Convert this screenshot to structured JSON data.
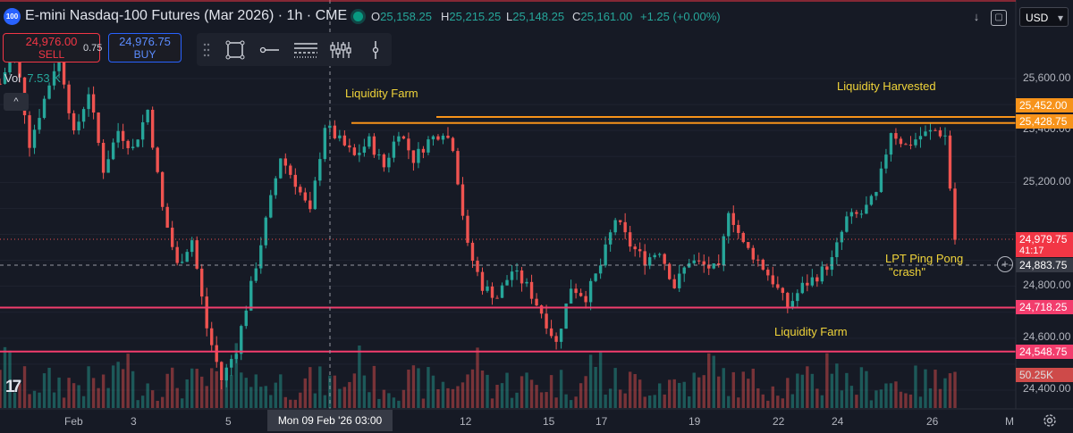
{
  "header": {
    "badge": "100",
    "title": "E-mini Nasdaq-100 Futures (Mar 2026) · 1h · CME",
    "ohlc": [
      {
        "k": "O",
        "v": "25,158.25"
      },
      {
        "k": "H",
        "v": "25,215.25"
      },
      {
        "k": "L",
        "v": "25,148.25"
      },
      {
        "k": "C",
        "v": "25,161.00"
      }
    ],
    "change": "+1.25 (+0.00%)",
    "currency": "USD"
  },
  "trade": {
    "sell_price": "24,976.00",
    "sell_label": "SELL",
    "spread": "0.75",
    "buy_price": "24,976.75",
    "buy_label": "BUY"
  },
  "volume": {
    "label": "Vol",
    "value": "7.53 K"
  },
  "annotations": {
    "liquidity_farm_top": "Liquidity Farm",
    "liquidity_harvested": "Liquidity Harvested",
    "lpt_line1": "LPT Ping Pong",
    "lpt_line2": "\"crash\"",
    "liquidity_farm_bottom": "Liquidity Farm"
  },
  "price_axis": {
    "labels": [
      "25,600.00",
      "25,400.00",
      "25,200.00",
      "24,800.00",
      "24,600.00",
      "24,400.00"
    ],
    "tags": {
      "orange_1": "25,452.00",
      "orange_2": "25,428.75",
      "current": "24,979.75",
      "countdown": "41:17",
      "crosshair": "24,883.75",
      "red_1": "24,718.25",
      "red_2": "24,548.75",
      "vol": "50.25K"
    }
  },
  "time_axis": {
    "labels": [
      "Feb",
      "3",
      "5",
      "12",
      "15",
      "17",
      "19",
      "22",
      "24",
      "26",
      "M"
    ],
    "crosshair": "Mon 09 Feb '26   03:00"
  },
  "colors": {
    "up": "#26a69a",
    "down": "#ef5350",
    "orange": "#f7931a",
    "pink": "#f23d6d",
    "annotation": "#f0d43a",
    "background": "#161a25"
  },
  "chart_data": {
    "type": "candlestick",
    "ylim": [
      24380,
      25700
    ],
    "levels": [
      25452.0,
      25428.75,
      24718.25,
      24548.75
    ],
    "current": 24979.75,
    "crosshair_price": 24883.75,
    "path_points": [
      [
        0,
        25580
      ],
      [
        3,
        25720
      ],
      [
        6,
        25350
      ],
      [
        9,
        25520
      ],
      [
        12,
        25700
      ],
      [
        15,
        25380
      ],
      [
        18,
        25550
      ],
      [
        21,
        25250
      ],
      [
        24,
        25400
      ],
      [
        27,
        25330
      ],
      [
        30,
        25480
      ],
      [
        33,
        25100
      ],
      [
        36,
        24880
      ],
      [
        39,
        24980
      ],
      [
        42,
        24640
      ],
      [
        45,
        24440
      ],
      [
        48,
        24560
      ],
      [
        51,
        24800
      ],
      [
        54,
        25050
      ],
      [
        57,
        25300
      ],
      [
        60,
        25200
      ],
      [
        63,
        25080
      ],
      [
        66,
        25420
      ],
      [
        69,
        25360
      ],
      [
        72,
        25300
      ],
      [
        75,
        25360
      ],
      [
        78,
        25260
      ],
      [
        81,
        25400
      ],
      [
        84,
        25290
      ],
      [
        87,
        25360
      ],
      [
        90,
        25400
      ],
      [
        92,
        25340
      ],
      [
        95,
        24950
      ],
      [
        98,
        24800
      ],
      [
        101,
        24760
      ],
      [
        104,
        24860
      ],
      [
        107,
        24800
      ],
      [
        110,
        24700
      ],
      [
        113,
        24580
      ],
      [
        116,
        24800
      ],
      [
        119,
        24760
      ],
      [
        122,
        24880
      ],
      [
        125,
        25060
      ],
      [
        128,
        24960
      ],
      [
        131,
        24900
      ],
      [
        134,
        24940
      ],
      [
        137,
        24800
      ],
      [
        140,
        24900
      ],
      [
        143,
        24880
      ],
      [
        146,
        24860
      ],
      [
        148,
        25100
      ],
      [
        151,
        24960
      ],
      [
        154,
        24900
      ],
      [
        157,
        24820
      ],
      [
        160,
        24720
      ],
      [
        163,
        24800
      ],
      [
        166,
        24840
      ],
      [
        169,
        24900
      ],
      [
        172,
        25060
      ],
      [
        175,
        25080
      ],
      [
        178,
        25150
      ],
      [
        181,
        25400
      ],
      [
        184,
        25340
      ],
      [
        187,
        25380
      ],
      [
        190,
        25400
      ],
      [
        192,
        25380
      ],
      [
        193,
        25180
      ],
      [
        194,
        24980
      ]
    ]
  }
}
